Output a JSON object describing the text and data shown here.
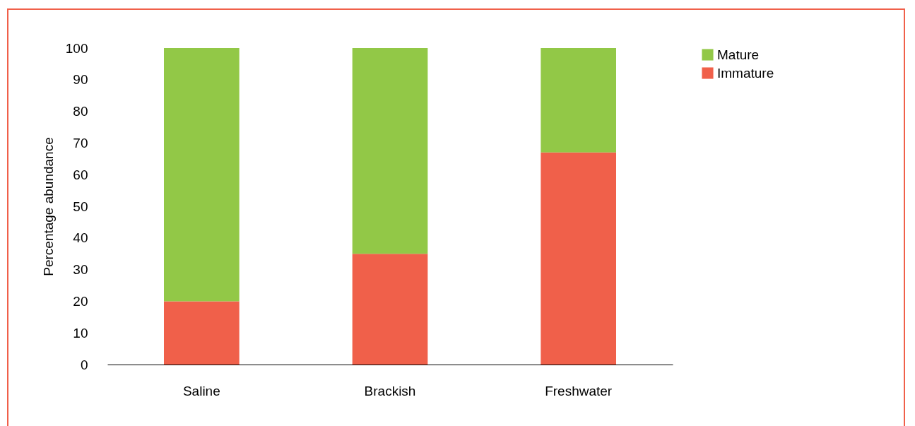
{
  "chart_data": {
    "type": "bar",
    "stacked": true,
    "ylabel": "Percentage abundance",
    "categories": [
      "Saline",
      "Brackish",
      "Freshwater"
    ],
    "series": [
      {
        "name": "Immature",
        "color": "#f0604a",
        "values": [
          20,
          35,
          67
        ]
      },
      {
        "name": "Mature",
        "color": "#92c847",
        "values": [
          80,
          65,
          33
        ]
      }
    ],
    "ylim": [
      0,
      100
    ],
    "yticks": [
      0,
      10,
      20,
      30,
      40,
      50,
      60,
      70,
      80,
      90,
      100
    ],
    "grid": false,
    "legend": "top right"
  }
}
